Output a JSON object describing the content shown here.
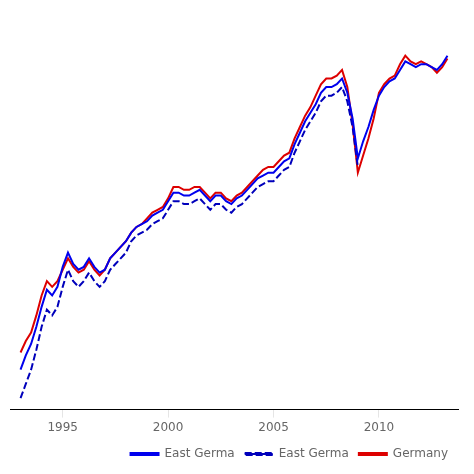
{
  "chart_data": {
    "type": "line",
    "xlim": [
      1992.5,
      2013.75
    ],
    "xticks": [
      1995,
      2000,
      2005,
      2010
    ],
    "ylim": [
      75,
      145
    ],
    "tick_labels": "x",
    "grid": false,
    "legend": "lower right",
    "series": [
      {
        "name": "East Germa",
        "color": "#0000ee",
        "line_style": "solid",
        "x": [
          1993.0,
          1993.25,
          1993.5,
          1993.75,
          1994.0,
          1994.25,
          1994.5,
          1994.75,
          1995.0,
          1995.25,
          1995.5,
          1995.75,
          1996.0,
          1996.25,
          1996.5,
          1996.75,
          1997.0,
          1997.25,
          1997.5,
          1997.75,
          1998.0,
          1998.25,
          1998.5,
          1998.75,
          1999.0,
          1999.25,
          1999.5,
          1999.75,
          2000.0,
          2000.25,
          2000.5,
          2000.75,
          2001.0,
          2001.25,
          2001.5,
          2001.75,
          2002.0,
          2002.25,
          2002.5,
          2002.75,
          2003.0,
          2003.25,
          2003.5,
          2003.75,
          2004.0,
          2004.25,
          2004.5,
          2004.75,
          2005.0,
          2005.25,
          2005.5,
          2005.75,
          2006.0,
          2006.25,
          2006.5,
          2006.75,
          2007.0,
          2007.25,
          2007.5,
          2007.75,
          2008.0,
          2008.25,
          2008.5,
          2008.75,
          2009.0,
          2009.25,
          2009.5,
          2009.75,
          2010.0,
          2010.25,
          2010.5,
          2010.75,
          2011.0,
          2011.25,
          2011.5,
          2011.75,
          2012.0,
          2012.25,
          2012.5,
          2012.75,
          2013.0,
          2013.25
        ],
        "values": [
          82.0,
          84.5,
          86.5,
          89.5,
          93.0,
          96.0,
          95.0,
          96.5,
          100.0,
          102.5,
          100.5,
          99.5,
          100.0,
          101.5,
          100.0,
          99.0,
          99.5,
          101.5,
          102.5,
          103.5,
          104.5,
          106.0,
          107.0,
          107.5,
          108.0,
          109.0,
          109.5,
          110.0,
          111.5,
          113.0,
          113.0,
          112.5,
          112.5,
          113.0,
          113.5,
          112.5,
          111.5,
          112.5,
          112.5,
          111.5,
          111.0,
          112.0,
          112.5,
          113.5,
          114.5,
          115.5,
          116.0,
          116.5,
          116.5,
          117.5,
          118.5,
          119.0,
          121.5,
          123.5,
          125.5,
          127.0,
          128.5,
          130.5,
          131.5,
          131.5,
          132.0,
          133.0,
          130.5,
          126.0,
          119.0,
          122.0,
          124.5,
          127.5,
          130.0,
          131.5,
          132.5,
          133.0,
          134.5,
          136.0,
          135.5,
          135.0,
          135.5,
          135.5,
          135.0,
          134.5,
          135.5,
          137.0
        ]
      },
      {
        "name": "East Germa",
        "color": "#0000bb",
        "line_style": "dashed",
        "x": [
          1993.0,
          1993.25,
          1993.5,
          1993.75,
          1994.0,
          1994.25,
          1994.5,
          1994.75,
          1995.0,
          1995.25,
          1995.5,
          1995.75,
          1996.0,
          1996.25,
          1996.5,
          1996.75,
          1997.0,
          1997.25,
          1997.5,
          1997.75,
          1998.0,
          1998.25,
          1998.5,
          1998.75,
          1999.0,
          1999.25,
          1999.5,
          1999.75,
          2000.0,
          2000.25,
          2000.5,
          2000.75,
          2001.0,
          2001.25,
          2001.5,
          2001.75,
          2002.0,
          2002.25,
          2002.5,
          2002.75,
          2003.0,
          2003.25,
          2003.5,
          2003.75,
          2004.0,
          2004.25,
          2004.5,
          2004.75,
          2005.0,
          2005.25,
          2005.5,
          2005.75,
          2006.0,
          2006.25,
          2006.5,
          2006.75,
          2007.0,
          2007.25,
          2007.5,
          2007.75,
          2008.0,
          2008.25,
          2008.5,
          2008.75,
          2009.0
        ],
        "values": [
          77.0,
          79.5,
          82.0,
          85.5,
          89.5,
          92.5,
          91.5,
          93.0,
          96.5,
          99.5,
          97.5,
          96.5,
          97.5,
          99.0,
          97.5,
          96.5,
          97.5,
          99.5,
          100.5,
          101.5,
          102.5,
          104.5,
          105.5,
          106.0,
          106.5,
          107.5,
          108.0,
          108.5,
          110.0,
          111.5,
          111.5,
          111.0,
          111.0,
          111.5,
          112.0,
          111.0,
          110.0,
          111.0,
          111.0,
          110.0,
          109.5,
          110.5,
          111.0,
          112.0,
          113.0,
          114.0,
          114.5,
          115.0,
          115.0,
          116.0,
          117.0,
          117.5,
          120.0,
          122.0,
          124.0,
          125.5,
          127.0,
          129.0,
          130.0,
          130.0,
          130.5,
          131.5,
          129.0,
          124.5,
          117.5
        ]
      },
      {
        "name": "Germany",
        "color": "#dd0000",
        "line_style": "solid",
        "x": [
          1993.0,
          1993.25,
          1993.5,
          1993.75,
          1994.0,
          1994.25,
          1994.5,
          1994.75,
          1995.0,
          1995.25,
          1995.5,
          1995.75,
          1996.0,
          1996.25,
          1996.5,
          1996.75,
          1997.0,
          1997.25,
          1997.5,
          1997.75,
          1998.0,
          1998.25,
          1998.5,
          1998.75,
          1999.0,
          1999.25,
          1999.5,
          1999.75,
          2000.0,
          2000.25,
          2000.5,
          2000.75,
          2001.0,
          2001.25,
          2001.5,
          2001.75,
          2002.0,
          2002.25,
          2002.5,
          2002.75,
          2003.0,
          2003.25,
          2003.5,
          2003.75,
          2004.0,
          2004.25,
          2004.5,
          2004.75,
          2005.0,
          2005.25,
          2005.5,
          2005.75,
          2006.0,
          2006.25,
          2006.5,
          2006.75,
          2007.0,
          2007.25,
          2007.5,
          2007.75,
          2008.0,
          2008.25,
          2008.5,
          2008.75,
          2009.0,
          2009.25,
          2009.5,
          2009.75,
          2010.0,
          2010.25,
          2010.5,
          2010.75,
          2011.0,
          2011.25,
          2011.5,
          2011.75,
          2012.0,
          2012.25,
          2012.5,
          2012.75,
          2013.0,
          2013.25
        ],
        "values": [
          85.0,
          87.0,
          88.5,
          91.5,
          95.0,
          97.5,
          96.5,
          97.5,
          99.5,
          101.5,
          100.0,
          99.0,
          99.5,
          101.0,
          99.5,
          98.5,
          99.5,
          101.5,
          102.5,
          103.5,
          104.5,
          106.0,
          107.0,
          107.5,
          108.5,
          109.5,
          110.0,
          110.5,
          112.0,
          114.0,
          114.0,
          113.5,
          113.5,
          114.0,
          114.0,
          113.0,
          112.0,
          113.0,
          113.0,
          112.0,
          111.5,
          112.5,
          113.0,
          114.0,
          115.0,
          116.0,
          117.0,
          117.5,
          117.5,
          118.5,
          119.5,
          120.0,
          122.5,
          124.5,
          126.5,
          128.0,
          130.0,
          132.0,
          133.0,
          133.0,
          133.5,
          134.5,
          131.5,
          125.0,
          116.5,
          119.5,
          122.5,
          126.0,
          130.5,
          132.0,
          133.0,
          133.5,
          135.5,
          137.0,
          136.0,
          135.5,
          136.0,
          135.5,
          135.0,
          134.0,
          135.0,
          136.5
        ]
      }
    ]
  }
}
